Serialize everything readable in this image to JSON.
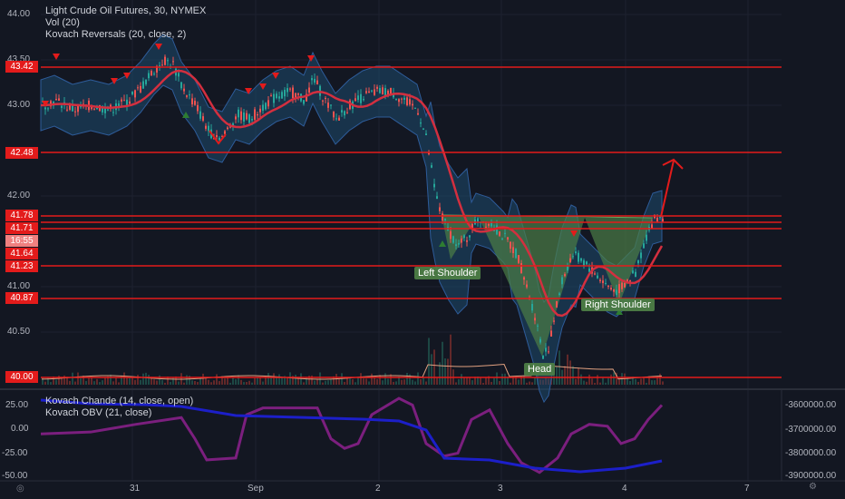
{
  "header": {
    "symbol_line": "Light Crude Oil Futures, 30, NYMEX",
    "vol_line": "Vol (20)",
    "reversals_line": "Kovach Reversals (20, close, 2)"
  },
  "oscillator": {
    "chande_line": "Kovach Chande (14, close, open)",
    "obv_line": "Kovach OBV (21, close)"
  },
  "price_axis": {
    "ticks": [
      "44.00",
      "43.50",
      "43.00",
      "42.00",
      "41.00",
      "40.50"
    ]
  },
  "levels": [
    {
      "label": "43.42",
      "style": "solid"
    },
    {
      "label": "42.48",
      "style": "solid"
    },
    {
      "label": "41.78",
      "style": "solid"
    },
    {
      "label": "41.71",
      "style": "solid"
    },
    {
      "label": "16:55",
      "style": "pale"
    },
    {
      "label": "41.64",
      "style": "solid"
    },
    {
      "label": "41.23",
      "style": "solid"
    },
    {
      "label": "40.87",
      "style": "solid"
    },
    {
      "label": "40.00",
      "style": "solid"
    }
  ],
  "patterns": {
    "left_shoulder": "Left Shoulder",
    "head": "Head",
    "right_shoulder": "Right Shoulder"
  },
  "osc_left_axis": [
    "25.00",
    "0.00",
    "-25.00",
    "-50.00"
  ],
  "osc_right_axis": [
    "-3600000.00",
    "-3700000.00",
    "-3800000.00",
    "-3900000.00"
  ],
  "time_axis": [
    "31",
    "Sep",
    "2",
    "3",
    "4",
    "7"
  ],
  "icons": {
    "timezone": "globe-icon",
    "settings": "gear-icon"
  },
  "colors": {
    "background": "#131722",
    "level_line": "#e31b1b",
    "bull": "#26a69a",
    "bear": "#ef5350",
    "band": "#1e4a6e",
    "pattern_fill": "#4c7d46",
    "chande": "#7b1f7e",
    "obv": "#1c1fc9"
  }
}
